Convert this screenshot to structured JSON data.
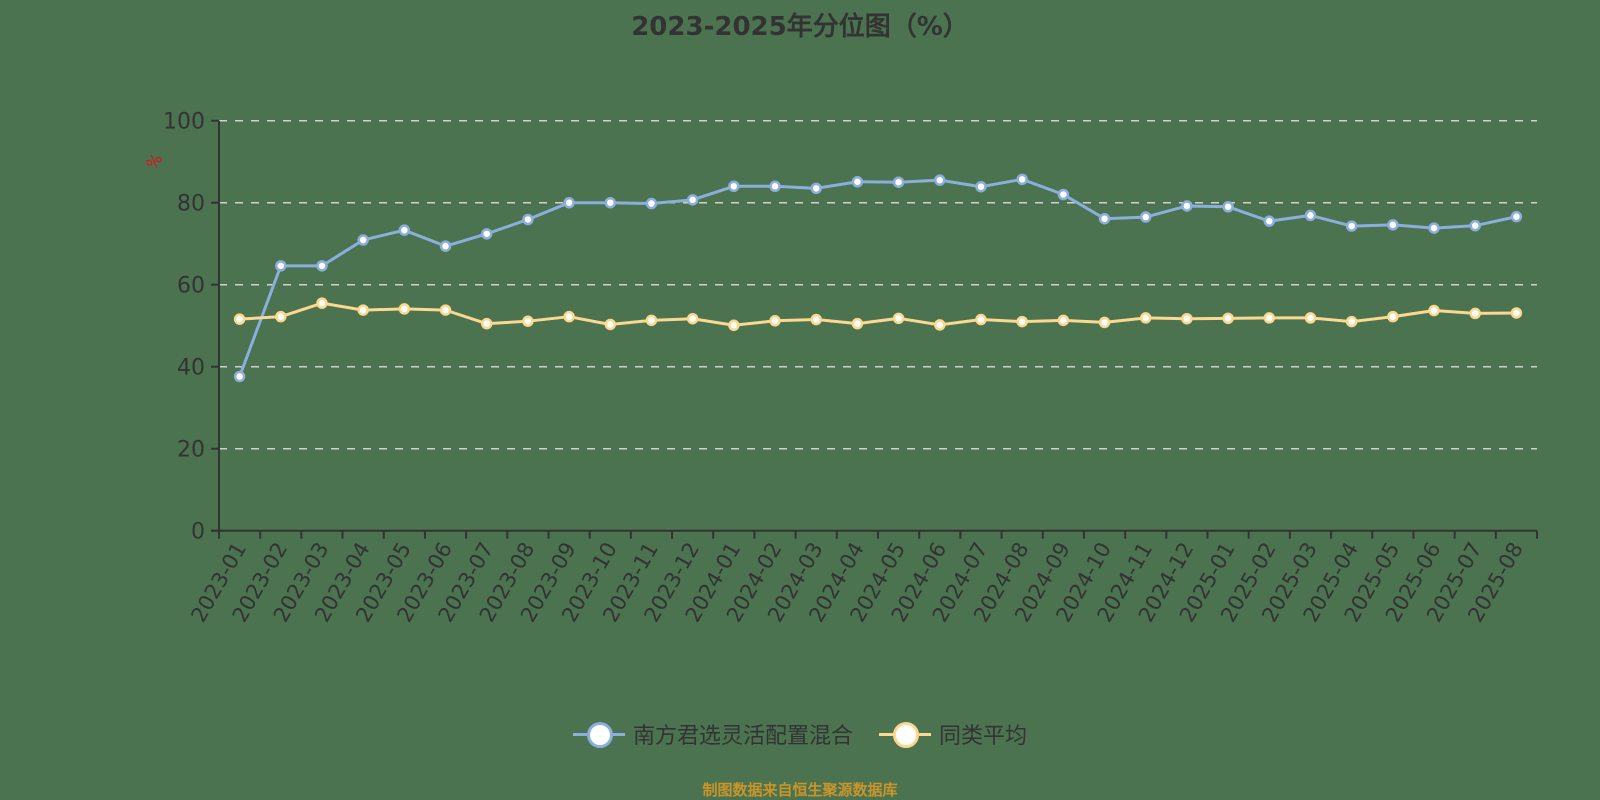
{
  "title": "2023-2025年分位图（%）",
  "footer": "制图数据来自恒生聚源数据库",
  "y_axis_unit": "%",
  "colors": {
    "background": "#4b7350",
    "series_fund": "#8caedc",
    "series_avg": "#fbd88f",
    "axis": "#333333",
    "grid": "#d0d0d0",
    "unit_label": "#e01010",
    "footer": "#c9952a"
  },
  "legend": [
    {
      "label": "南方君选灵活配置混合",
      "color": "#8caedc"
    },
    {
      "label": "同类平均",
      "color": "#fbd88f"
    }
  ],
  "chart_data": {
    "type": "line",
    "title": "2023-2025年分位图（%）",
    "xlabel": "",
    "ylabel": "%",
    "ylim": [
      0,
      100
    ],
    "yticks": [
      0,
      20,
      40,
      60,
      80,
      100
    ],
    "grid": true,
    "legend_position": "bottom",
    "categories": [
      "2023-01",
      "2023-02",
      "2023-03",
      "2023-04",
      "2023-05",
      "2023-06",
      "2023-07",
      "2023-08",
      "2023-09",
      "2023-10",
      "2023-11",
      "2023-12",
      "2024-01",
      "2024-02",
      "2024-03",
      "2024-04",
      "2024-05",
      "2024-06",
      "2024-07",
      "2024-08",
      "2024-09",
      "2024-10",
      "2024-11",
      "2024-12",
      "2025-01",
      "2025-02",
      "2025-03",
      "2025-04",
      "2025-05",
      "2025-06",
      "2025-07",
      "2025-08"
    ],
    "series": [
      {
        "name": "南方君选灵活配置混合",
        "values": [
          37.6,
          64.6,
          64.6,
          70.9,
          73.3,
          69.4,
          72.4,
          75.9,
          80.0,
          80.0,
          79.8,
          80.7,
          84.0,
          84.0,
          83.5,
          85.1,
          85.0,
          85.5,
          83.9,
          85.7,
          82.0,
          76.1,
          76.5,
          79.2,
          79.0,
          75.5,
          76.9,
          74.3,
          74.6,
          73.8,
          74.4,
          76.6
        ]
      },
      {
        "name": "同类平均",
        "values": [
          51.6,
          52.2,
          55.5,
          53.8,
          54.1,
          53.8,
          50.5,
          51.1,
          52.2,
          50.3,
          51.3,
          51.7,
          50.1,
          51.2,
          51.5,
          50.5,
          51.8,
          50.2,
          51.5,
          51.0,
          51.3,
          50.8,
          51.9,
          51.7,
          51.8,
          51.9,
          51.9,
          51.0,
          52.2,
          53.7,
          53.0,
          53.1
        ]
      }
    ]
  }
}
